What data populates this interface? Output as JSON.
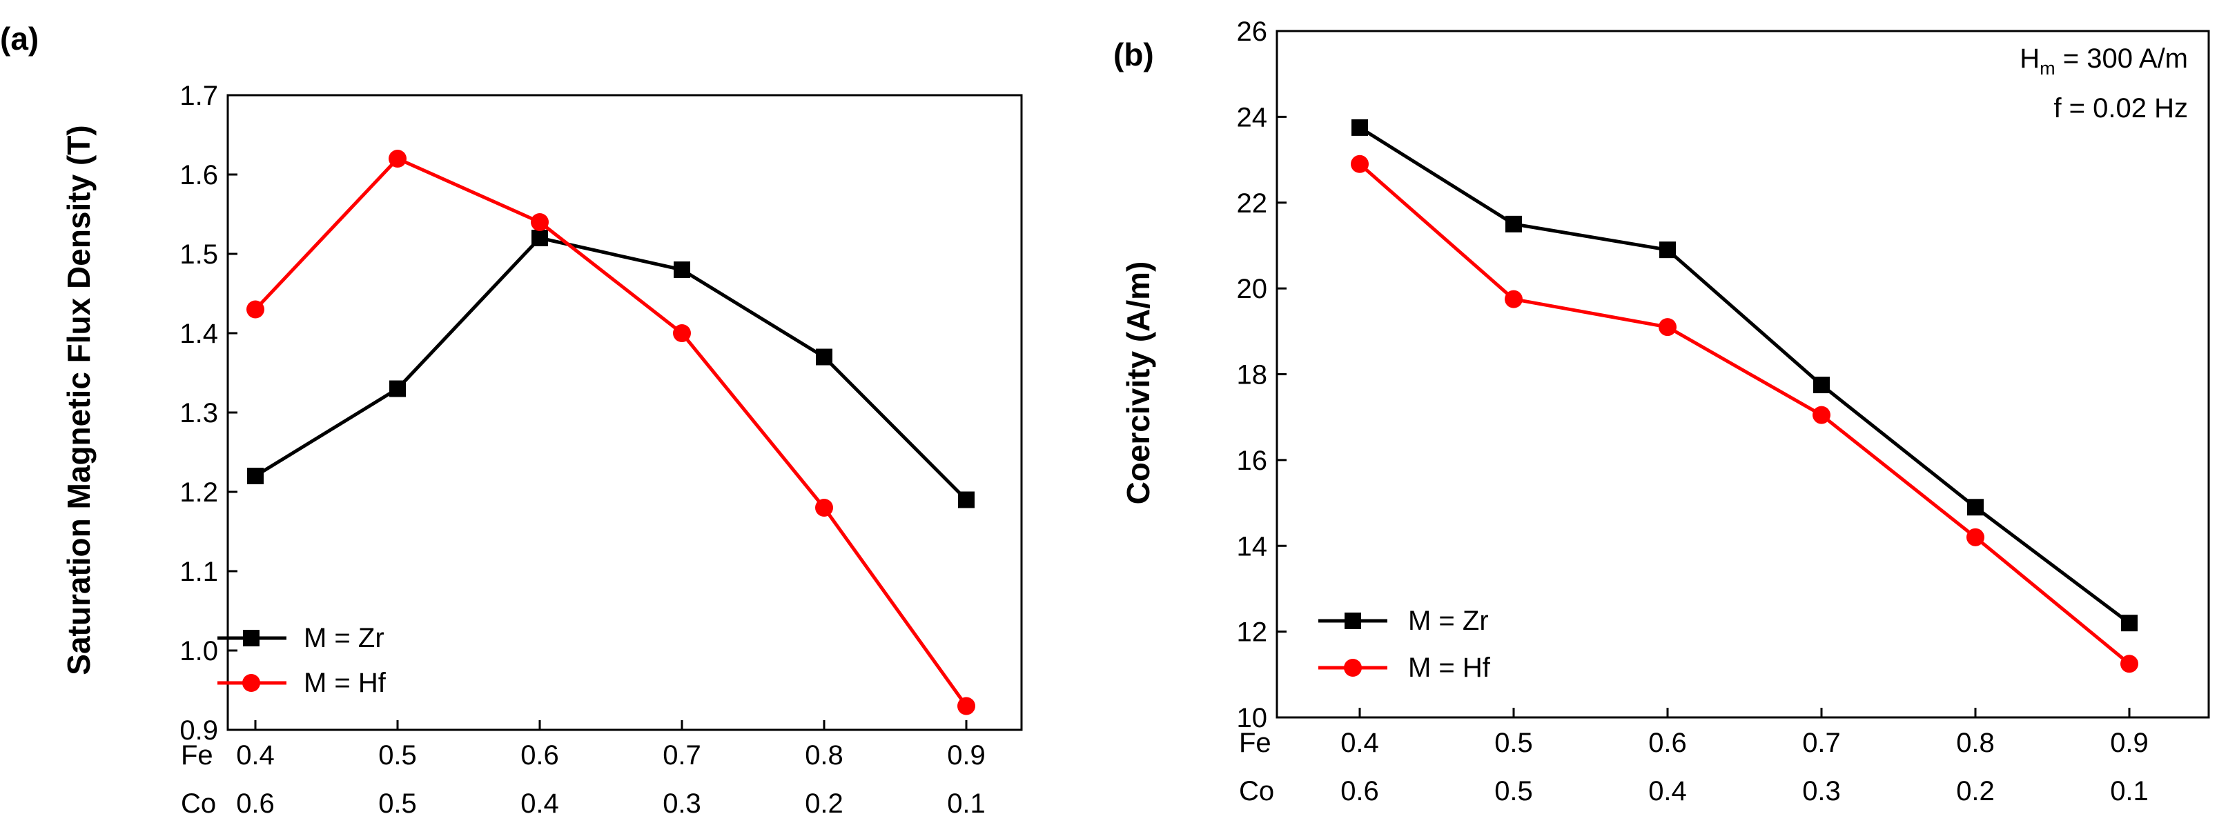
{
  "chart_data": [
    {
      "panel_label": "(a)",
      "type": "line",
      "title": "",
      "ylabel": "Saturation Magnetic Flux Density (T)",
      "ylim": [
        0.9,
        1.7
      ],
      "yticks": [
        "0.9",
        "1.0",
        "1.1",
        "1.2",
        "1.3",
        "1.4",
        "1.5",
        "1.6",
        "1.7"
      ],
      "x": [
        0.4,
        0.5,
        0.6,
        0.7,
        0.8,
        0.9
      ],
      "xrow1_label": "Fe",
      "xrow1_ticks": [
        "0.4",
        "0.5",
        "0.6",
        "0.7",
        "0.8",
        "0.9"
      ],
      "xrow2_label": "Co",
      "xrow2_ticks": [
        "0.6",
        "0.5",
        "0.4",
        "0.3",
        "0.2",
        "0.1"
      ],
      "legend_position": "bottom-left",
      "series": [
        {
          "name": "M = Zr",
          "marker": "square",
          "color": "#000000",
          "values": [
            1.22,
            1.33,
            1.52,
            1.48,
            1.37,
            1.19
          ]
        },
        {
          "name": "M = Hf",
          "marker": "circle",
          "color": "#ff0000",
          "values": [
            1.43,
            1.62,
            1.54,
            1.4,
            1.18,
            0.93
          ]
        }
      ],
      "annotations": []
    },
    {
      "panel_label": "(b)",
      "type": "line",
      "title": "",
      "ylabel": "Coercivity (A/m)",
      "ylim": [
        10,
        26
      ],
      "yticks": [
        "10",
        "12",
        "14",
        "16",
        "18",
        "20",
        "22",
        "24",
        "26"
      ],
      "x": [
        0.4,
        0.5,
        0.6,
        0.7,
        0.8,
        0.9
      ],
      "xrow1_label": "Fe",
      "xrow1_ticks": [
        "0.4",
        "0.5",
        "0.6",
        "0.7",
        "0.8",
        "0.9"
      ],
      "xrow2_label": "Co",
      "xrow2_ticks": [
        "0.6",
        "0.5",
        "0.4",
        "0.3",
        "0.2",
        "0.1"
      ],
      "legend_position": "bottom-left",
      "series": [
        {
          "name": "M = Zr",
          "marker": "square",
          "color": "#000000",
          "values": [
            23.75,
            21.5,
            20.9,
            17.75,
            14.9,
            12.2
          ]
        },
        {
          "name": "M = Hf",
          "marker": "circle",
          "color": "#ff0000",
          "values": [
            22.9,
            19.75,
            19.1,
            17.05,
            14.2,
            11.25
          ]
        }
      ],
      "annotations": [
        {
          "base": "H",
          "sub": "m",
          "rest": " = 300 A/m"
        },
        {
          "text": "f = 0.02 Hz"
        }
      ]
    }
  ]
}
